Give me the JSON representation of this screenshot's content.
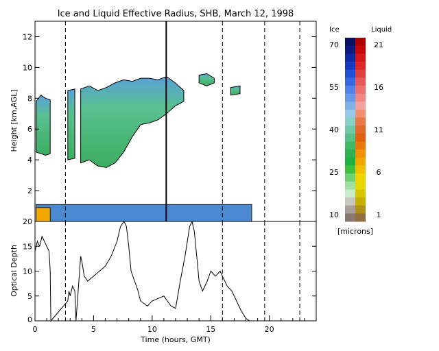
{
  "title": "Ice and Liquid Effective Radius, SHB, March 12, 1998",
  "colorbar": {
    "ice_header": "Ice",
    "liquid_header": "Liquid",
    "units": "[microns]",
    "ice_ticks": [
      70,
      55,
      40,
      25,
      10
    ],
    "liquid_ticks": [
      21,
      16,
      11,
      6,
      1
    ],
    "ice_colors": [
      "#0a1060",
      "#0c1a80",
      "#0f2aa0",
      "#1438c0",
      "#2050d8",
      "#3868e0",
      "#5080e8",
      "#6898e8",
      "#80b0e8",
      "#98c8e8",
      "#88d0c8",
      "#70c8a8",
      "#58c088",
      "#40b868",
      "#30b050",
      "#20b040",
      "#40c040",
      "#70d070",
      "#a0e0a0",
      "#c8ecc8",
      "#c8c8c0",
      "#a8a098",
      "#887870"
    ],
    "liquid_colors": [
      "#b00000",
      "#c80808",
      "#d81818",
      "#e02828",
      "#e04040",
      "#e85858",
      "#f07070",
      "#f08888",
      "#f0a0a0",
      "#f09070",
      "#e87848",
      "#e06828",
      "#e06010",
      "#e87808",
      "#f09008",
      "#f0a800",
      "#f0c000",
      "#f0d400",
      "#e8d800",
      "#d8c400",
      "#c8b000",
      "#b09018",
      "#907040"
    ],
    "colors": [
      "#0a1060",
      "#b00000"
    ]
  },
  "icons": [
    "colorbar-swatch-icon"
  ],
  "chart_data": [
    {
      "type": "heatmap",
      "panel": "effective-radius",
      "title": "Ice and Liquid Effective Radius, SHB, March 12, 1998",
      "xlabel": "",
      "ylabel": "Height [km,AGL]",
      "xlim": [
        0,
        24
      ],
      "ylim": [
        0,
        13
      ],
      "yticks": [
        2,
        4,
        6,
        8,
        10,
        12
      ],
      "ice_cloud_regions": [
        {
          "x_start": 0.1,
          "x_end": 1.3,
          "top": [
            7.8,
            8.2,
            8.0,
            7.9
          ],
          "base": [
            4.5,
            4.4,
            4.3,
            4.4
          ]
        },
        {
          "x_start": 2.8,
          "x_end": 3.4,
          "top": [
            8.5,
            8.6
          ],
          "base": [
            4.0,
            4.1
          ]
        },
        {
          "x_start": 3.9,
          "x_end": 12.7,
          "top": [
            8.6,
            8.8,
            8.5,
            8.7,
            9.0,
            9.2,
            9.1,
            9.3,
            9.3,
            9.2,
            9.4,
            9.0,
            8.5
          ],
          "base": [
            3.8,
            4.0,
            3.6,
            3.5,
            3.8,
            4.5,
            5.5,
            6.3,
            6.4,
            6.6,
            7.0,
            7.5,
            7.8
          ]
        },
        {
          "x_start": 14.0,
          "x_end": 15.3,
          "top": [
            9.5,
            9.6,
            9.3
          ],
          "base": [
            9.0,
            8.8,
            9.0
          ]
        },
        {
          "x_start": 16.7,
          "x_end": 17.5,
          "top": [
            8.7,
            8.8
          ],
          "base": [
            8.2,
            8.3
          ]
        }
      ],
      "liquid_layer": {
        "x_start": 0.1,
        "x_end": 18.5,
        "top_km": 1.1,
        "base_km": 0.0
      },
      "vertical_lines": {
        "solid": [
          11.2
        ],
        "dashed": [
          2.6,
          16.0,
          19.6,
          22.6
        ]
      }
    },
    {
      "type": "line",
      "panel": "optical-depth",
      "xlabel": "Time (hours, GMT)",
      "ylabel": "Optical Depth",
      "xlim": [
        0,
        24
      ],
      "ylim": [
        0,
        20
      ],
      "xticks": [
        0,
        5,
        10,
        15,
        20
      ],
      "yticks": [
        0,
        5,
        10,
        15,
        20
      ],
      "x": [
        0,
        0.2,
        0.4,
        0.6,
        0.8,
        1.0,
        1.2,
        1.3,
        1.35,
        2.8,
        2.9,
        3.0,
        3.2,
        3.4,
        3.5,
        3.9,
        4.0,
        4.2,
        4.5,
        5.0,
        5.5,
        6.0,
        6.5,
        7.0,
        7.3,
        7.6,
        7.8,
        8.0,
        8.2,
        8.5,
        8.8,
        9.0,
        9.3,
        9.6,
        10.0,
        10.5,
        11.0,
        11.3,
        11.6,
        12.0,
        12.4,
        12.8,
        13.0,
        13.2,
        13.4,
        13.6,
        13.8,
        14.0,
        14.3,
        14.7,
        15.0,
        15.4,
        15.8,
        16.0,
        16.4,
        16.8,
        17.2,
        17.6,
        18.0,
        18.3
      ],
      "y": [
        14,
        16,
        15,
        17,
        16,
        15,
        14,
        10,
        0,
        4,
        6,
        5,
        7,
        6,
        0,
        13,
        12,
        9,
        8,
        9,
        10,
        11,
        13,
        16,
        19,
        20,
        19,
        15,
        10,
        8,
        6,
        4,
        3.5,
        3,
        4,
        4.5,
        5,
        4,
        3,
        2.5,
        8,
        13,
        16,
        19,
        20,
        18,
        13,
        8,
        6,
        8,
        10,
        9,
        10,
        9,
        7,
        6,
        4,
        2,
        0.5,
        0
      ],
      "vertical_lines": {
        "solid": [],
        "dashed": [
          2.6,
          16.0,
          19.6,
          22.6
        ]
      }
    }
  ]
}
